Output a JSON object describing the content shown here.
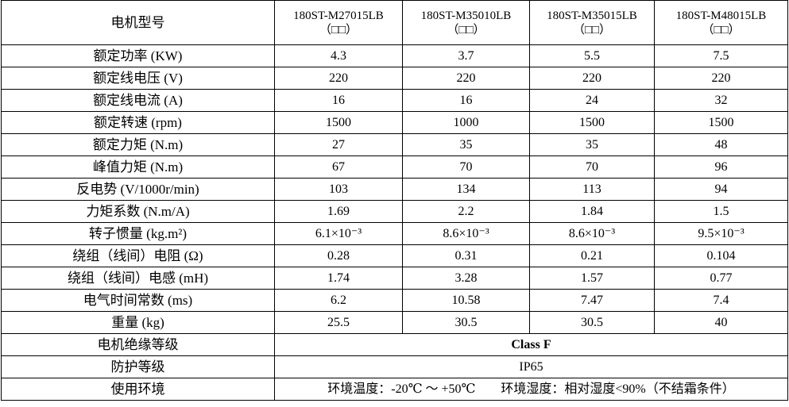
{
  "table": {
    "header": {
      "label": "电机型号",
      "columns": [
        {
          "model": "180ST-M27015LB",
          "suffix": "（□□）"
        },
        {
          "model": "180ST-M35010LB",
          "suffix": "（□□）"
        },
        {
          "model": "180ST-M35015LB",
          "suffix": "（□□）"
        },
        {
          "model": "180ST-M48015LB",
          "suffix": "（□□）"
        }
      ]
    },
    "rows": [
      {
        "label": "额定功率 (KW)",
        "values": [
          4.3,
          3.7,
          5.5,
          7.5
        ]
      },
      {
        "label": "额定线电压 (V)",
        "values": [
          220,
          220,
          220,
          220
        ]
      },
      {
        "label": "额定线电流 (A)",
        "values": [
          16,
          16,
          24,
          32
        ]
      },
      {
        "label": "额定转速 (rpm)",
        "values": [
          1500,
          1000,
          1500,
          1500
        ]
      },
      {
        "label": "额定力矩 (N.m)",
        "values": [
          27,
          35,
          35,
          48
        ]
      },
      {
        "label": "峰值力矩 (N.m)",
        "values": [
          67,
          70,
          70,
          96
        ]
      },
      {
        "label": "反电势 (V/1000r/min)",
        "values": [
          103,
          134,
          113,
          94
        ]
      },
      {
        "label": "力矩系数 (N.m/A)",
        "values": [
          1.69,
          2.2,
          1.84,
          1.5
        ]
      },
      {
        "label": "转子惯量 (kg.m²)",
        "values": [
          "6.1×10⁻³",
          "8.6×10⁻³",
          "8.6×10⁻³",
          "9.5×10⁻³"
        ]
      },
      {
        "label": "绕组（线间）电阻 (Ω)",
        "values": [
          0.28,
          0.31,
          0.21,
          0.104
        ]
      },
      {
        "label": "绕组（线间）电感 (mH)",
        "values": [
          1.74,
          3.28,
          1.57,
          0.77
        ]
      },
      {
        "label": "电气时间常数 (ms)",
        "values": [
          6.2,
          10.58,
          7.47,
          7.4
        ]
      },
      {
        "label": "重量 (kg)",
        "values": [
          25.5,
          30.5,
          30.5,
          40
        ]
      }
    ],
    "span_rows": [
      {
        "label": "电机绝缘等级",
        "value": "Class F"
      },
      {
        "label": "防护等级",
        "value": "IP65"
      },
      {
        "label": "使用环境",
        "value": "环境温度：-20℃ ～ +50℃　　环境湿度：相对湿度<90%（不结霜条件）"
      }
    ]
  }
}
